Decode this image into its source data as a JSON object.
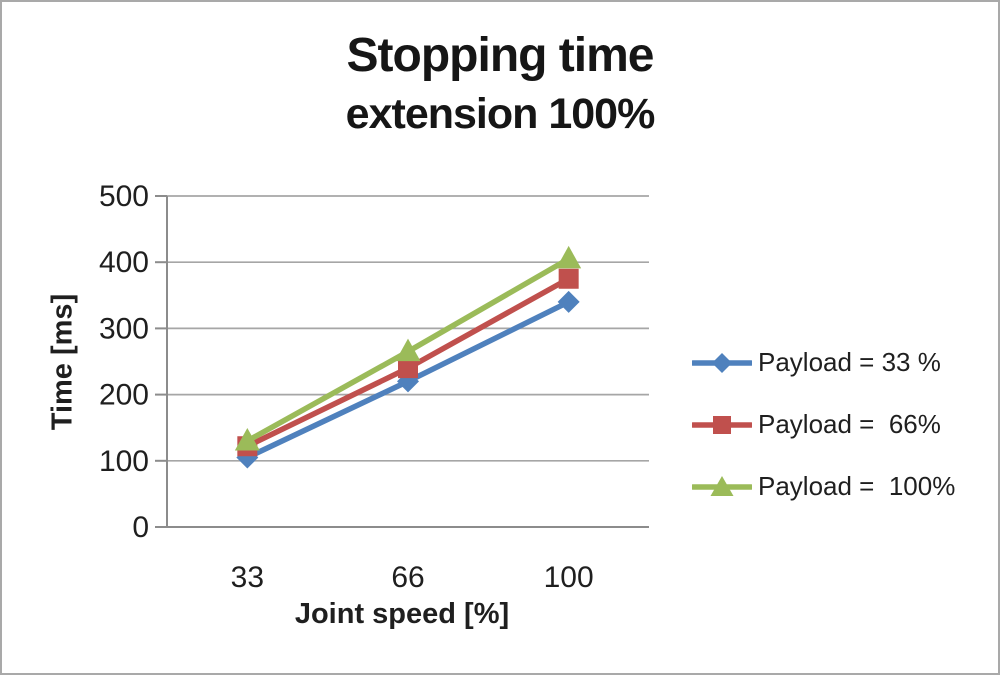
{
  "chart_data": {
    "type": "line",
    "title": "Stopping time",
    "subtitle": "extension 100%",
    "xlabel": "Joint speed [%]",
    "ylabel": "Time [ms]",
    "categories": [
      "33",
      "66",
      "100"
    ],
    "series": [
      {
        "name": "Payload = 33 %",
        "marker": "diamond",
        "color": "#4F81BD",
        "values": [
          105,
          220,
          340
        ]
      },
      {
        "name": "Payload =  66%",
        "marker": "square",
        "color": "#C0504D",
        "values": [
          122,
          240,
          375
        ]
      },
      {
        "name": "Payload =  100%",
        "marker": "triangle",
        "color": "#9BBB59",
        "values": [
          130,
          265,
          405
        ]
      }
    ],
    "ylim": [
      0,
      500
    ],
    "yticks": [
      0,
      100,
      200,
      300,
      400,
      500
    ],
    "grid": "horizontal",
    "legend_position": "right",
    "colors": {
      "gridline": "#A6A6A6",
      "axis": "#8C8C8C",
      "text": "#1F1F1F",
      "background": "#FFFFFF",
      "frame_border": "#A9A9A9"
    }
  }
}
